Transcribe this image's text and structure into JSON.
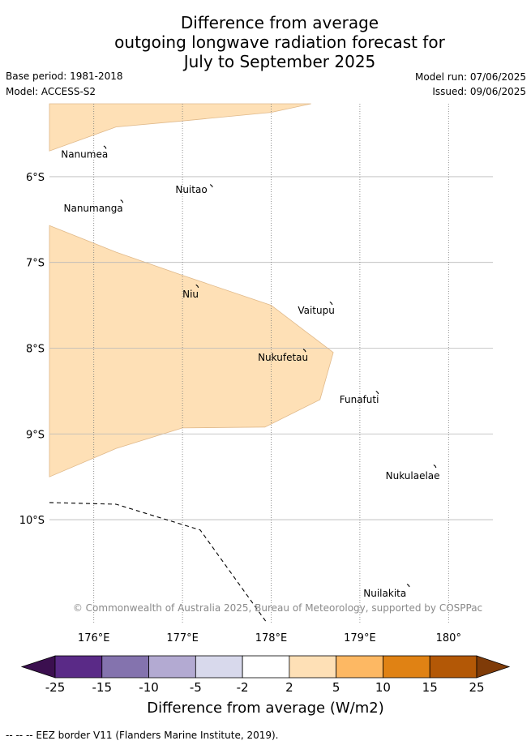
{
  "title": {
    "line1": "Difference from average",
    "line2": "outgoing longwave radiation forecast for",
    "line3": "July to September 2025"
  },
  "meta": {
    "base_period": "Base period: 1981-2018",
    "model": "Model: ACCESS-S2",
    "model_run": "Model run: 07/06/2025",
    "issued": "Issued: 09/06/2025"
  },
  "map": {
    "lon_range": [
      175.5,
      180.5
    ],
    "lat_range": [
      -11.2,
      -5.15
    ],
    "lon_ticks": [
      176,
      177,
      178,
      179,
      180
    ],
    "lon_tick_labels": [
      "176°E",
      "177°E",
      "178°E",
      "179°E",
      "180°"
    ],
    "lat_ticks": [
      -6,
      -7,
      -8,
      -9,
      -10
    ],
    "lat_tick_labels": [
      "6°S",
      "7°S",
      "8°S",
      "9°S",
      "10°S"
    ],
    "fill_color": "#fee0b6",
    "regions": [
      {
        "category": "2 to 5",
        "points": [
          [
            175.5,
            -5.15
          ],
          [
            178.45,
            -5.15
          ],
          [
            178.0,
            -5.25
          ],
          [
            177.0,
            -5.35
          ],
          [
            176.25,
            -5.42
          ],
          [
            175.5,
            -5.7
          ]
        ]
      },
      {
        "category": "2 to 5",
        "points": [
          [
            175.5,
            -6.57
          ],
          [
            176.25,
            -6.88
          ],
          [
            177.0,
            -7.15
          ],
          [
            178.0,
            -7.5
          ],
          [
            178.7,
            -8.05
          ],
          [
            178.55,
            -8.6
          ],
          [
            177.93,
            -8.92
          ],
          [
            177.0,
            -8.93
          ],
          [
            176.25,
            -9.17
          ],
          [
            175.5,
            -9.5
          ]
        ]
      }
    ],
    "islands": [
      {
        "name": "Nanumea",
        "lon": 176.13,
        "lat": -5.66,
        "label_lon": 175.63,
        "label_lat": -5.74
      },
      {
        "name": "Nuitao",
        "lon": 177.33,
        "lat": -6.11,
        "label_lon": 176.92,
        "label_lat": -6.15
      },
      {
        "name": "Nanumanga",
        "lon": 176.32,
        "lat": -6.29,
        "label_lon": 175.66,
        "label_lat": -6.37
      },
      {
        "name": "Niu",
        "lon": 177.17,
        "lat": -7.28,
        "label_lon": 177.0,
        "label_lat": -7.37
      },
      {
        "name": "Vaitupu",
        "lon": 178.68,
        "lat": -7.48,
        "label_lon": 178.3,
        "label_lat": -7.56
      },
      {
        "name": "Nukufetau",
        "lon": 178.38,
        "lat": -8.03,
        "label_lon": 177.85,
        "label_lat": -8.11
      },
      {
        "name": "Funafuti",
        "lon": 179.2,
        "lat": -8.52,
        "label_lon": 178.77,
        "label_lat": -8.6
      },
      {
        "name": "Nukulaelae",
        "lon": 179.85,
        "lat": -9.38,
        "label_lon": 179.29,
        "label_lat": -9.49
      },
      {
        "name": "Nuilakita",
        "lon": 179.55,
        "lat": -10.77,
        "label_lon": 179.04,
        "label_lat": -10.86
      }
    ],
    "eez_border": [
      [
        175.5,
        -9.8
      ],
      [
        176.25,
        -9.82
      ],
      [
        177.2,
        -10.12
      ],
      [
        177.95,
        -11.2
      ]
    ],
    "attribution": "© Commonwealth of Australia 2025, Bureau of Meteorology, supported by COSPPac"
  },
  "colorbar": {
    "colors": [
      "#3b0f4f",
      "#5a2a87",
      "#8473ae",
      "#b3aad2",
      "#d8d9ec",
      "#ffffff",
      "#fee0b6",
      "#fdb863",
      "#e08214",
      "#b35806",
      "#7f3b08"
    ],
    "tick_labels": [
      "-25",
      "-15",
      "-10",
      "-5",
      "-2",
      "2",
      "5",
      "10",
      "15",
      "25"
    ],
    "title": "Difference from average (W/m2)"
  },
  "footnote": "-- -- -- EEZ border V11 (Flanders Marine Institute, 2019)."
}
